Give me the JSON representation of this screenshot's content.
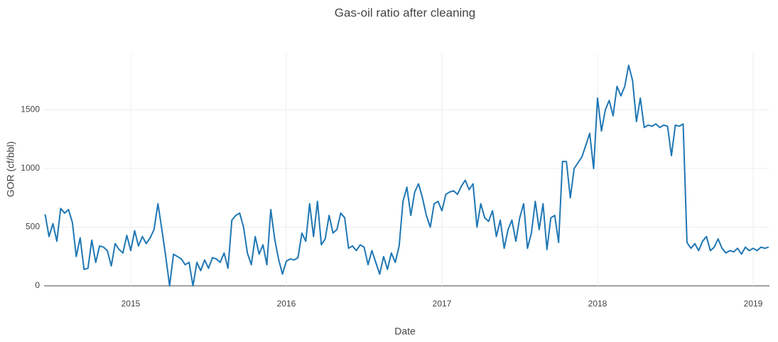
{
  "chart_data": {
    "type": "line",
    "title": "Gas-oil ratio after cleaning",
    "x_label": "Date",
    "y_label": "GOR (cf/bbl)",
    "xlim": [
      2014.443,
      2019.105
    ],
    "xticks": [
      2015,
      2016,
      2017,
      2018,
      2019
    ],
    "ylim": [
      0,
      1982
    ],
    "yticks": [
      0,
      500,
      1000,
      1500
    ],
    "grid": true,
    "x": [
      2014.45,
      2014.475,
      2014.5,
      2014.525,
      2014.55,
      2014.575,
      2014.6,
      2014.625,
      2014.65,
      2014.675,
      2014.7,
      2014.725,
      2014.75,
      2014.775,
      2014.8,
      2014.825,
      2014.85,
      2014.875,
      2014.9,
      2014.925,
      2014.95,
      2014.975,
      2015,
      2015.025,
      2015.05,
      2015.075,
      2015.1,
      2015.125,
      2015.15,
      2015.175,
      2015.2,
      2015.225,
      2015.25,
      2015.275,
      2015.3,
      2015.325,
      2015.35,
      2015.375,
      2015.4,
      2015.425,
      2015.45,
      2015.475,
      2015.5,
      2015.525,
      2015.55,
      2015.575,
      2015.6,
      2015.625,
      2015.65,
      2015.675,
      2015.7,
      2015.725,
      2015.75,
      2015.775,
      2015.8,
      2015.825,
      2015.85,
      2015.875,
      2015.9,
      2015.925,
      2015.95,
      2015.975,
      2016,
      2016.025,
      2016.05,
      2016.075,
      2016.1,
      2016.125,
      2016.15,
      2016.175,
      2016.2,
      2016.225,
      2016.25,
      2016.275,
      2016.3,
      2016.325,
      2016.35,
      2016.375,
      2016.4,
      2016.425,
      2016.45,
      2016.475,
      2016.5,
      2016.525,
      2016.55,
      2016.575,
      2016.6,
      2016.625,
      2016.65,
      2016.675,
      2016.7,
      2016.725,
      2016.75,
      2016.775,
      2016.8,
      2016.825,
      2016.85,
      2016.875,
      2016.9,
      2016.925,
      2016.95,
      2016.975,
      2017,
      2017.025,
      2017.05,
      2017.075,
      2017.1,
      2017.125,
      2017.15,
      2017.175,
      2017.2,
      2017.225,
      2017.25,
      2017.275,
      2017.3,
      2017.325,
      2017.35,
      2017.375,
      2017.4,
      2017.425,
      2017.45,
      2017.475,
      2017.5,
      2017.525,
      2017.55,
      2017.575,
      2017.6,
      2017.625,
      2017.65,
      2017.675,
      2017.7,
      2017.725,
      2017.75,
      2017.775,
      2017.8,
      2017.825,
      2017.85,
      2017.875,
      2017.9,
      2017.925,
      2017.95,
      2017.975,
      2018,
      2018.025,
      2018.05,
      2018.075,
      2018.1,
      2018.125,
      2018.15,
      2018.175,
      2018.2,
      2018.225,
      2018.25,
      2018.275,
      2018.3,
      2018.325,
      2018.35,
      2018.375,
      2018.4,
      2018.425,
      2018.45,
      2018.475,
      2018.5,
      2018.525,
      2018.55,
      2018.575,
      2018.6,
      2018.625,
      2018.65,
      2018.675,
      2018.7,
      2018.725,
      2018.75,
      2018.775,
      2018.8,
      2018.825,
      2018.85,
      2018.875,
      2018.9,
      2018.925,
      2018.95,
      2018.975,
      2019,
      2019.025,
      2019.05,
      2019.075,
      2019.1
    ],
    "series": [
      {
        "color": "#1f77b4",
        "values": [
          610,
          420,
          530,
          380,
          660,
          620,
          650,
          540,
          250,
          410,
          140,
          150,
          390,
          200,
          340,
          330,
          300,
          170,
          360,
          310,
          280,
          430,
          300,
          470,
          340,
          420,
          360,
          410,
          480,
          700,
          480,
          250,
          0,
          270,
          250,
          230,
          180,
          200,
          0,
          200,
          130,
          220,
          150,
          240,
          230,
          200,
          280,
          150,
          560,
          600,
          620,
          500,
          280,
          180,
          420,
          270,
          350,
          180,
          650,
          400,
          230,
          100,
          210,
          230,
          220,
          240,
          450,
          380,
          700,
          420,
          720,
          350,
          400,
          600,
          450,
          480,
          620,
          580,
          320,
          340,
          300,
          350,
          330,
          180,
          300,
          200,
          100,
          250,
          140,
          280,
          200,
          340,
          720,
          840,
          600,
          800,
          870,
          750,
          600,
          500,
          700,
          720,
          640,
          780,
          800,
          810,
          780,
          850,
          900,
          820,
          870,
          500,
          700,
          580,
          550,
          640,
          420,
          560,
          320,
          480,
          560,
          380,
          580,
          700,
          320,
          450,
          720,
          480,
          700,
          310,
          580,
          600,
          370,
          1060,
          1060,
          750,
          1000,
          1050,
          1100,
          1200,
          1300,
          1000,
          1600,
          1320,
          1500,
          1580,
          1450,
          1700,
          1620,
          1700,
          1880,
          1750,
          1400,
          1600,
          1350,
          1370,
          1360,
          1380,
          1350,
          1370,
          1360,
          1110,
          1370,
          1360,
          1380,
          370,
          320,
          360,
          300,
          380,
          420,
          300,
          330,
          400,
          320,
          280,
          300,
          290,
          320,
          270,
          330,
          300,
          320,
          300,
          330,
          320,
          330
        ]
      }
    ]
  }
}
